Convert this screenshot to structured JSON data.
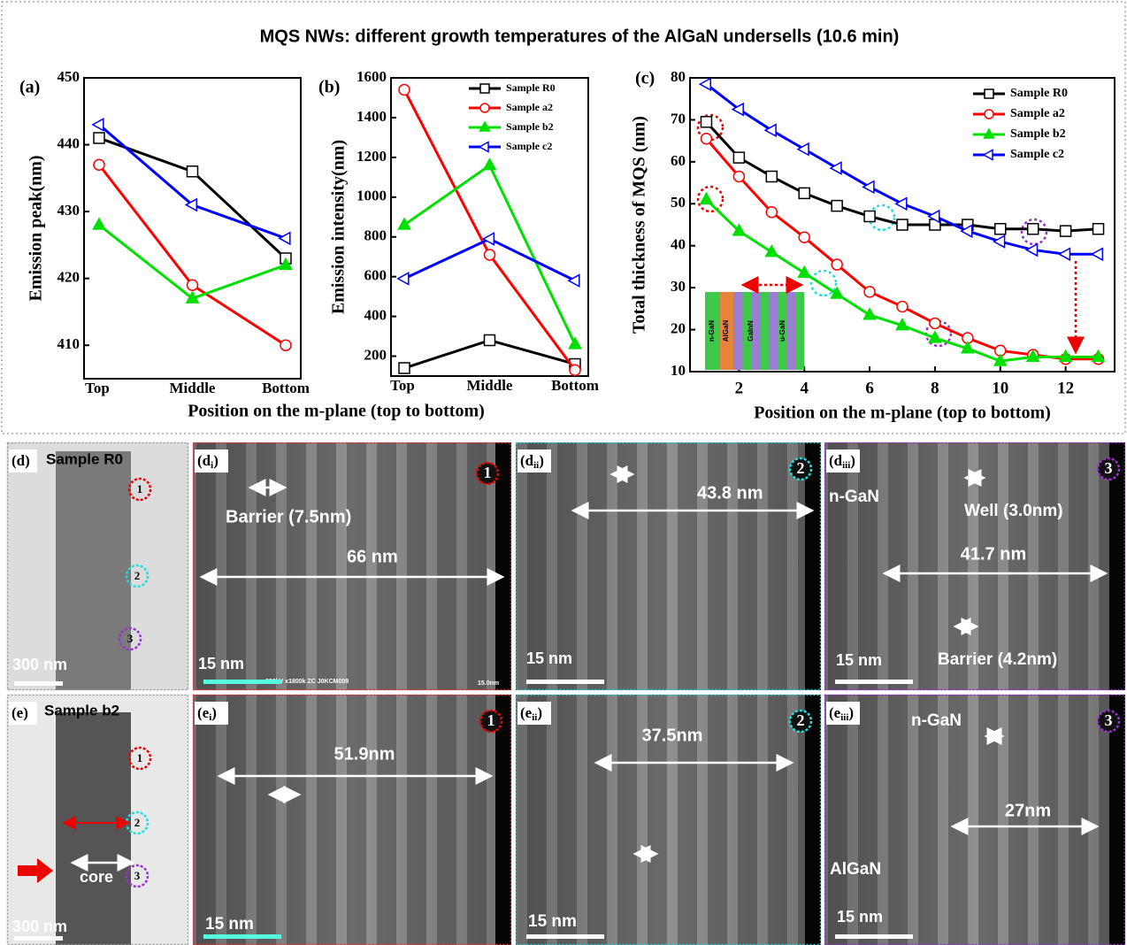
{
  "title": "MQS NWs: different growth temperatures of the AlGaN undersells (10.6 min)",
  "chart_data": [
    {
      "type": "line",
      "panel": "(a)",
      "ylabel": "Emission peak(nm)",
      "xlabel": "Position on the m-plane (top to bottom)",
      "categories": [
        "Top",
        "Middle",
        "Bottom"
      ],
      "ylim": [
        405,
        450
      ],
      "yticks": [
        410,
        420,
        430,
        440,
        450
      ],
      "series": [
        {
          "color": "#000000",
          "marker": "square",
          "values": [
            441,
            436,
            423
          ]
        },
        {
          "color": "#ff0000",
          "marker": "circle",
          "values": [
            437,
            419,
            410
          ]
        },
        {
          "color": "#00e000",
          "marker": "triangle-up",
          "values": [
            428,
            417,
            422
          ]
        },
        {
          "color": "#0000ff",
          "marker": "triangle-left",
          "values": [
            443,
            431,
            426
          ]
        }
      ]
    },
    {
      "type": "line",
      "panel": "(b)",
      "ylabel": "Emission intensity(nm)",
      "legend": "upper right",
      "categories": [
        "Top",
        "Middle",
        "Bottom"
      ],
      "ylim": [
        100,
        1600
      ],
      "yticks": [
        200,
        400,
        600,
        800,
        1000,
        1200,
        1400,
        1600
      ],
      "series": [
        {
          "name": "Sample R0",
          "color": "#000000",
          "marker": "square",
          "values": [
            140,
            280,
            160
          ]
        },
        {
          "name": "Sample a2",
          "color": "#ff0000",
          "marker": "circle",
          "values": [
            1540,
            710,
            130
          ]
        },
        {
          "name": "Sample b2",
          "color": "#00e000",
          "marker": "triangle-up",
          "values": [
            860,
            1160,
            260
          ]
        },
        {
          "name": "Sample c2",
          "color": "#0000ff",
          "marker": "triangle-left",
          "values": [
            590,
            790,
            580
          ]
        }
      ]
    },
    {
      "type": "line",
      "panel": "(c)",
      "ylabel": "Total thickness of MQS (nm)",
      "xlabel": "Position on the m-plane (top to bottom)",
      "legend": "upper right",
      "x": [
        1,
        2,
        3,
        4,
        5,
        6,
        7,
        8,
        9,
        10,
        11,
        12,
        13
      ],
      "xlim": [
        0.5,
        13.5
      ],
      "xticks": [
        2,
        4,
        6,
        8,
        10,
        12
      ],
      "ylim": [
        10,
        80
      ],
      "yticks": [
        10,
        20,
        30,
        40,
        50,
        60,
        70,
        80
      ],
      "inset_labels": [
        "n-GaN",
        "AlGaN",
        "GaInN",
        "u-GaN"
      ],
      "series": [
        {
          "name": "Sample R0",
          "color": "#000000",
          "marker": "square",
          "values": [
            69.5,
            61,
            56.5,
            52.5,
            49.5,
            47,
            45,
            45,
            45,
            44,
            44,
            43.5,
            44
          ]
        },
        {
          "name": "Sample a2",
          "color": "#ff0000",
          "marker": "circle",
          "values": [
            65.5,
            56.5,
            48,
            42,
            35.5,
            29,
            25.5,
            21.5,
            18,
            15,
            14,
            13,
            13
          ]
        },
        {
          "name": "Sample b2",
          "color": "#00e000",
          "marker": "triangle-up",
          "values": [
            51,
            43.5,
            38.5,
            33.5,
            28.5,
            23.5,
            21,
            18,
            15.5,
            12.5,
            13.5,
            13.5,
            13.5
          ]
        },
        {
          "name": "Sample c2",
          "color": "#0000ff",
          "marker": "triangle-left",
          "values": [
            78.5,
            72.5,
            67.5,
            63,
            58.5,
            54,
            50,
            47,
            43.5,
            41,
            39,
            38,
            38
          ]
        }
      ]
    }
  ],
  "panels": [
    {
      "label": [
        "(d)"
      ],
      "texts": [
        "Sample R0",
        "1",
        "2",
        "3",
        "300 nm"
      ]
    },
    {
      "label": [
        "(d",
        "i",
        ")"
      ],
      "texts": [
        "1",
        "Barrier (7.5nm)",
        "66 nm",
        "15 nm",
        "200kV x1800k ZC J0KCM009",
        "15.0nm"
      ]
    },
    {
      "label": [
        "(d",
        "ii",
        ")"
      ],
      "texts": [
        "2",
        "43.8 nm",
        "15 nm"
      ]
    },
    {
      "label": [
        "(d",
        "iii",
        ")"
      ],
      "texts": [
        "3",
        "n-GaN",
        "Well (3.0nm)",
        "41.7 nm",
        "15 nm",
        "Barrier (4.2nm)"
      ]
    },
    {
      "label": [
        "(e)"
      ],
      "texts": [
        "Sample b2",
        "1",
        "2",
        "3",
        "core",
        "300 nm"
      ]
    },
    {
      "label": [
        "(e",
        "i",
        ")"
      ],
      "texts": [
        "1",
        "51.9nm",
        "15 nm"
      ]
    },
    {
      "label": [
        "(e",
        "ii",
        ")"
      ],
      "texts": [
        "2",
        "37.5nm",
        "15 nm"
      ]
    },
    {
      "label": [
        "(e",
        "iii",
        ")"
      ],
      "texts": [
        "3",
        "n-GaN",
        "27nm",
        "AlGaN",
        "15 nm"
      ]
    }
  ]
}
